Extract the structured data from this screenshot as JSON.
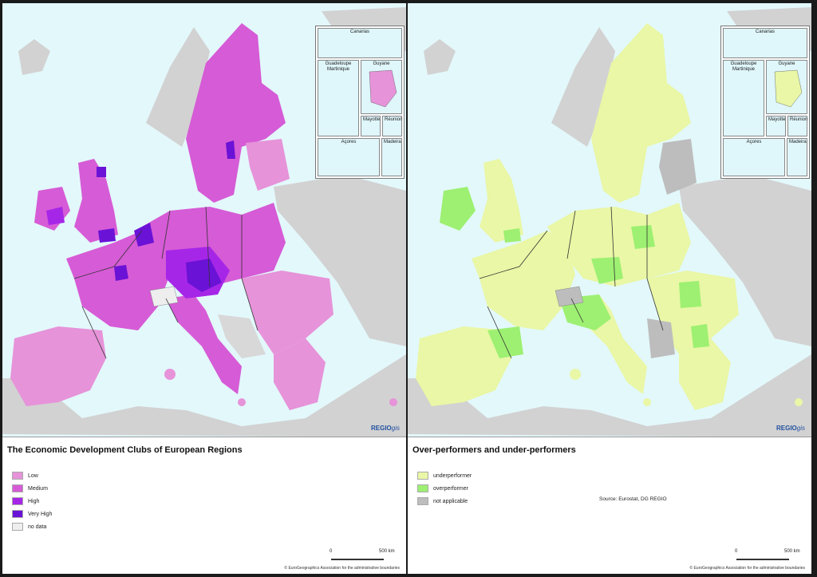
{
  "maps": [
    {
      "title": "The Economic Development Clubs of European Regions",
      "legend": [
        {
          "label": "Low",
          "color": "#e693d9"
        },
        {
          "label": "Medium",
          "color": "#d65bd6"
        },
        {
          "label": "High",
          "color": "#a626e8"
        },
        {
          "label": "Very High",
          "color": "#6a12d6"
        },
        {
          "label": "no data",
          "color": "#eeeeee"
        }
      ],
      "source": "",
      "colors": {
        "base": "#d65bd6",
        "light": "#e693d9",
        "high": "#a626e8",
        "veryhigh": "#6a12d6",
        "nodata": "#d8d8d8"
      }
    },
    {
      "title": "Over-performers and under-performers",
      "legend": [
        {
          "label": "underperformer",
          "color": "#e9f7a6"
        },
        {
          "label": "overperformer",
          "color": "#9df071"
        },
        {
          "label": "not applicable",
          "color": "#bdbdbd"
        }
      ],
      "source": "Source: Eurostat, DG REGIO",
      "colors": {
        "base": "#e9f7a6",
        "light": "#e9f7a6",
        "high": "#9df071",
        "veryhigh": "#9df071",
        "nodata": "#bdbdbd"
      }
    }
  ],
  "insets": {
    "canarias": "Canarias",
    "guadeloupe": "Guadeloupe Martinique",
    "guyane": "Guyane",
    "mayotte": "Mayotte",
    "reunion": "Réunion",
    "acores": "Açores",
    "madeira": "Madeira"
  },
  "branding": {
    "regio": "REGIO",
    "gis": "gis"
  },
  "scale": {
    "zero": "0",
    "distance": "500 km"
  },
  "copyright": "© EuroGeographics Association for the administrative boundaries",
  "palette": {
    "sea": "#e3f8fb",
    "non_eu": "#d2d2d2"
  }
}
